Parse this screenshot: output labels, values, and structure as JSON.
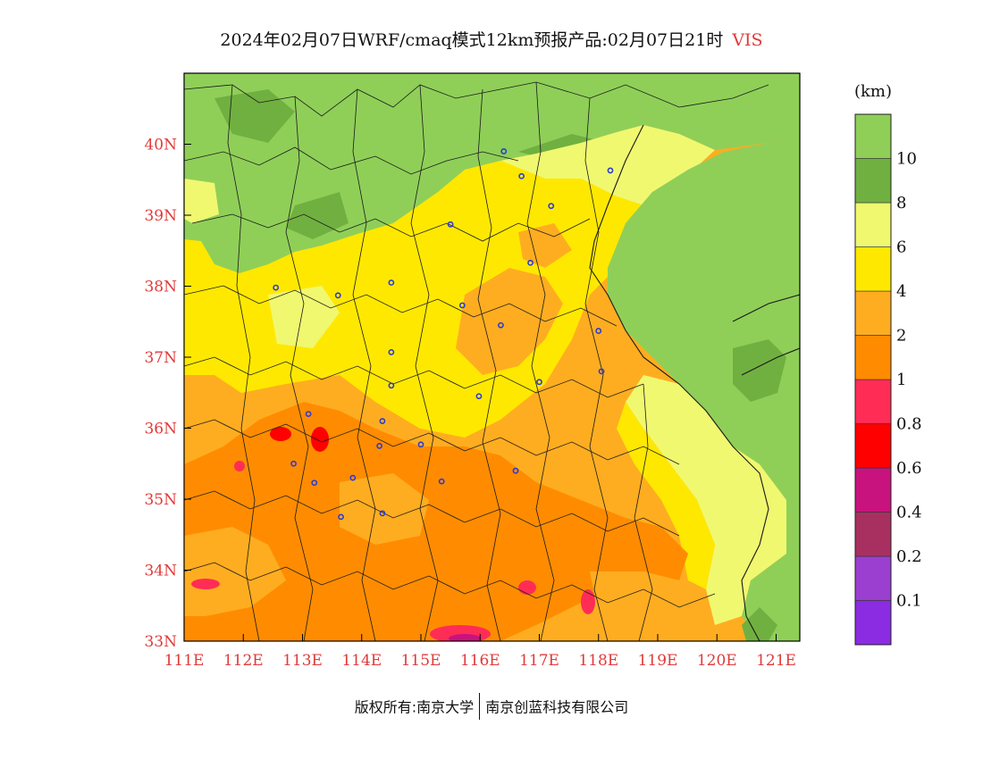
{
  "title": {
    "main": "2024年02月07日WRF/cmaq模式12km预报产品:02月07日21时",
    "variable": "VIS"
  },
  "map": {
    "lon_range": [
      111,
      121.4
    ],
    "lat_range": [
      33,
      41
    ],
    "lon_ticks": [
      "111E",
      "112E",
      "113E",
      "114E",
      "115E",
      "116E",
      "117E",
      "118E",
      "119E",
      "120E",
      "121E"
    ],
    "lat_ticks": [
      "33N",
      "34N",
      "35N",
      "36N",
      "37N",
      "38N",
      "39N",
      "40N"
    ],
    "station_marker_color": "#2a3bd6",
    "stations": [
      [
        116.4,
        39.9
      ],
      [
        116.7,
        39.55
      ],
      [
        117.2,
        39.13
      ],
      [
        118.2,
        39.63
      ],
      [
        115.5,
        38.87
      ],
      [
        116.85,
        38.33
      ],
      [
        114.5,
        38.05
      ],
      [
        113.6,
        37.87
      ],
      [
        112.55,
        37.98
      ],
      [
        115.7,
        37.73
      ],
      [
        116.35,
        37.45
      ],
      [
        118.0,
        37.37
      ],
      [
        114.5,
        37.07
      ],
      [
        114.5,
        36.6
      ],
      [
        117.0,
        36.65
      ],
      [
        118.05,
        36.8
      ],
      [
        115.98,
        36.45
      ],
      [
        113.1,
        36.2
      ],
      [
        114.35,
        36.1
      ],
      [
        114.3,
        35.75
      ],
      [
        115.0,
        35.77
      ],
      [
        112.85,
        35.5
      ],
      [
        113.2,
        35.23
      ],
      [
        113.85,
        35.3
      ],
      [
        115.35,
        35.25
      ],
      [
        116.6,
        35.4
      ],
      [
        114.35,
        34.8
      ],
      [
        113.65,
        34.75
      ]
    ]
  },
  "colorbar": {
    "unit": "(km)",
    "colors": [
      "#8b2be2",
      "#9b3fd0",
      "#a83060",
      "#c8137e",
      "#ff0000",
      "#ff2d55",
      "#ff8c00",
      "#ffad20",
      "#ffe800",
      "#f0f870",
      "#70b040",
      "#8fcf58"
    ],
    "labels": [
      "0.1",
      "0.2",
      "0.4",
      "0.6",
      "0.8",
      "1",
      "2",
      "4",
      "6",
      "8",
      "10"
    ]
  },
  "footer": {
    "copyright": "版权所有:南京大学",
    "company": "南京创蓝科技有限公司"
  }
}
